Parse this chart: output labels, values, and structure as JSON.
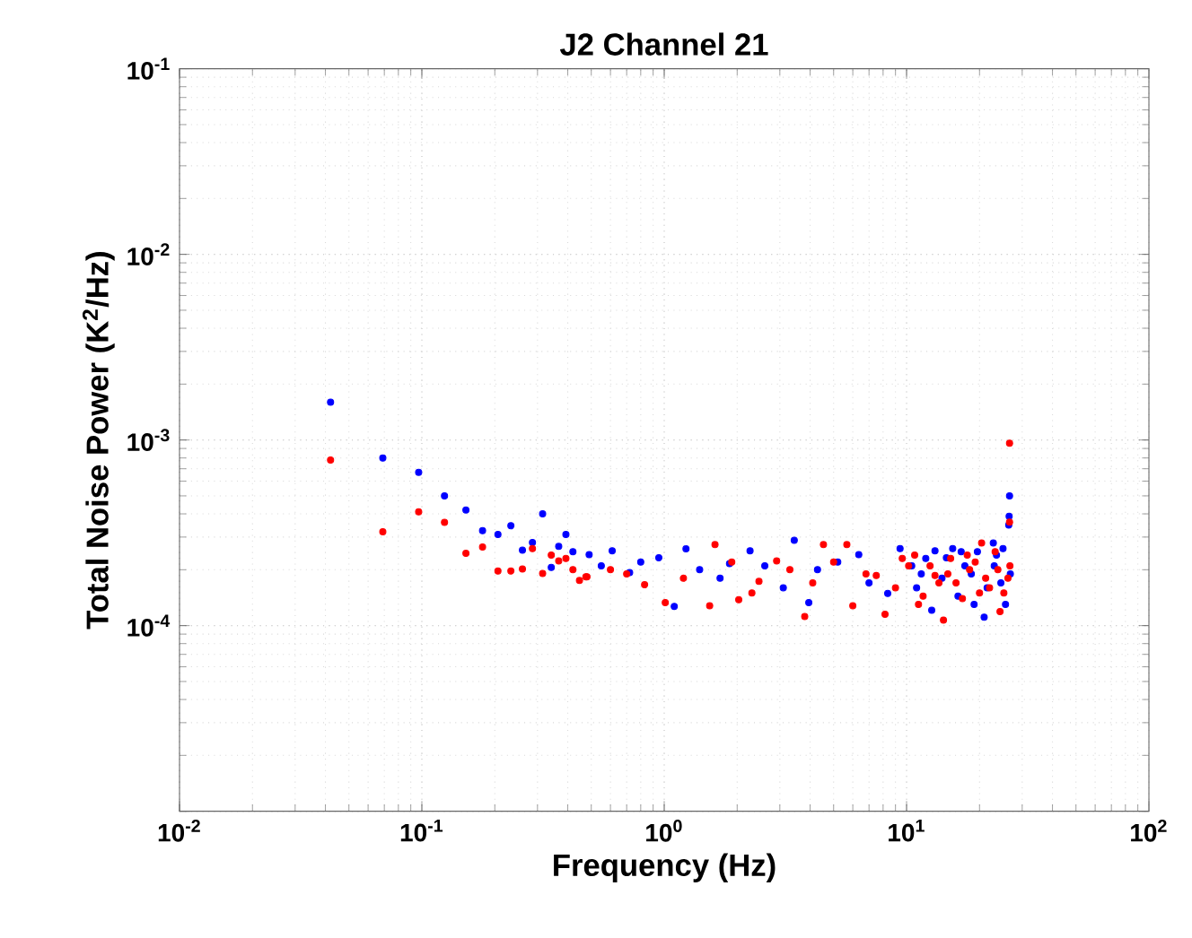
{
  "chart_data": {
    "type": "scatter",
    "title": "J2 Channel 21",
    "xlabel": "Frequency (Hz)",
    "ylabel": "Total Noise Power (K$^{2}$/Hz)",
    "log": "xy",
    "grid": true,
    "marker": "circle",
    "xlim": [
      0.01,
      100
    ],
    "ylim": [
      1e-05,
      0.1
    ],
    "xticks": [
      {
        "value": 0.01,
        "label": "10$^{-2}$"
      },
      {
        "value": 0.1,
        "label": "10$^{-1}$"
      },
      {
        "value": 1,
        "label": "10$^{0}$"
      },
      {
        "value": 10,
        "label": "10$^{1}$"
      },
      {
        "value": 100,
        "label": "10$^{2}$"
      }
    ],
    "yticks": [
      {
        "value": 1e-05,
        "label": null
      },
      {
        "value": 0.0001,
        "label": "10$^{-4}$"
      },
      {
        "value": 0.001,
        "label": "10$^{-3}$"
      },
      {
        "value": 0.01,
        "label": "10$^{-2}$"
      },
      {
        "value": 0.1,
        "label": "10$^{-1}$"
      }
    ],
    "series": [
      {
        "color": "#0000ff",
        "x": [
          0.042,
          0.069,
          0.097,
          0.124,
          0.152,
          0.178,
          0.206,
          0.233,
          0.26,
          0.286,
          0.315,
          0.342,
          0.367,
          0.393,
          0.42,
          0.49,
          0.61,
          0.72,
          0.95,
          1.1,
          1.23,
          1.86,
          2.26,
          3.44,
          3.95,
          4.29,
          6.35,
          8.36,
          10.5,
          12.7,
          13.1,
          14.6,
          16.3,
          18.5,
          20.9,
          22.8,
          24.5,
          26.4,
          26.5,
          26.6,
          0.55,
          0.8,
          1.4,
          1.7,
          2.6,
          3.1,
          5.2,
          7.0,
          9.4,
          11.5,
          12.0,
          15.5,
          17.4,
          19.6,
          21.5,
          23.5,
          25.6,
          26.8,
          11.0,
          14.0,
          16.8,
          19.0,
          23.0,
          25.0
        ],
        "values": [
          0.0016,
          0.0008,
          0.00067,
          0.0005,
          0.00042,
          0.000325,
          0.00031,
          0.000345,
          0.000255,
          0.00028,
          0.0004,
          0.000206,
          0.000267,
          0.00031,
          0.00025,
          0.000241,
          0.000253,
          0.000193,
          0.000232,
          0.000127,
          0.000259,
          0.000216,
          0.000253,
          0.000288,
          0.000133,
          0.0002,
          0.000241,
          0.000149,
          0.00021,
          0.000121,
          0.000253,
          0.000232,
          0.000144,
          0.00019,
          0.000111,
          0.000279,
          0.00017,
          0.000348,
          0.000388,
          0.0005,
          0.00021,
          0.00022,
          0.0002,
          0.00018,
          0.00021,
          0.00016,
          0.00022,
          0.00017,
          0.00026,
          0.00019,
          0.00023,
          0.00026,
          0.00021,
          0.00025,
          0.00016,
          0.00024,
          0.00013,
          0.00019,
          0.00016,
          0.00018,
          0.00025,
          0.00013,
          0.00021,
          0.00026
        ]
      },
      {
        "color": "#ff0000",
        "x": [
          0.042,
          0.069,
          0.097,
          0.124,
          0.152,
          0.178,
          0.206,
          0.233,
          0.26,
          0.286,
          0.315,
          0.342,
          0.367,
          0.393,
          0.42,
          0.447,
          0.475,
          0.48,
          0.6,
          0.83,
          1.01,
          1.54,
          1.62,
          2.03,
          2.46,
          2.91,
          3.8,
          4.54,
          5.67,
          6.0,
          7.5,
          8.15,
          10.2,
          11.7,
          13.1,
          14.2,
          16.0,
          18.2,
          20.4,
          22.0,
          24.3,
          26.6,
          26.6,
          0.7,
          1.2,
          1.9,
          2.3,
          3.3,
          4.1,
          5.0,
          6.8,
          9.0,
          10.8,
          12.5,
          13.6,
          15.2,
          17.0,
          19.2,
          21.2,
          23.2,
          25.2,
          26.7,
          9.6,
          11.2,
          14.8,
          17.8,
          20.0,
          23.8,
          26.2
        ],
        "values": [
          0.00078,
          0.00032,
          0.00041,
          0.00036,
          0.000245,
          0.000265,
          0.000197,
          0.000197,
          0.000202,
          0.00026,
          0.000191,
          0.00024,
          0.000223,
          0.00023,
          0.0002,
          0.000175,
          0.000183,
          0.000183,
          0.0002,
          0.000166,
          0.000133,
          0.000128,
          0.000273,
          0.000138,
          0.000173,
          0.000223,
          0.000112,
          0.000273,
          0.000273,
          0.000128,
          0.000186,
          0.000115,
          0.00021,
          0.000144,
          0.000186,
          0.000107,
          0.00017,
          0.0002,
          0.000279,
          0.00016,
          0.000119,
          0.00096,
          0.000361,
          0.00019,
          0.00018,
          0.00022,
          0.00015,
          0.0002,
          0.00017,
          0.00022,
          0.00019,
          0.00016,
          0.00024,
          0.00021,
          0.00017,
          0.00023,
          0.00014,
          0.00022,
          0.00018,
          0.00025,
          0.00015,
          0.00021,
          0.00023,
          0.00013,
          0.00019,
          0.00024,
          0.00015,
          0.0002,
          0.00018
        ]
      }
    ]
  }
}
